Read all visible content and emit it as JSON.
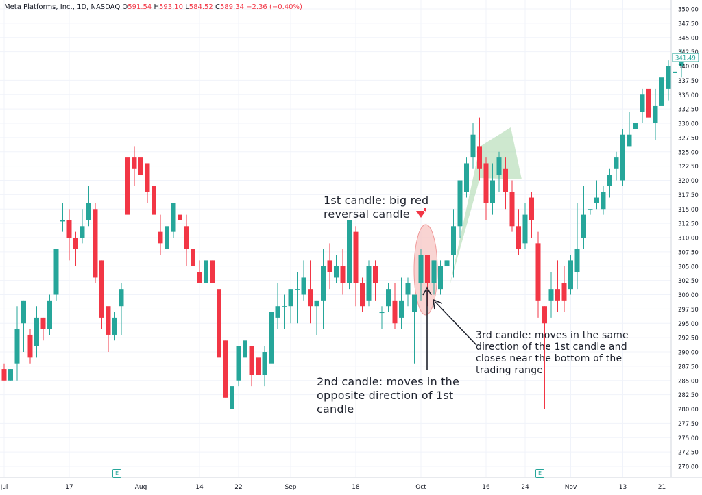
{
  "header": {
    "symbol": "Meta Platforms, Inc., 1D, NASDAQ",
    "o_label": "O",
    "o_value": "591.54",
    "h_label": "H",
    "h_value": "593.10",
    "l_label": "L",
    "l_value": "584.52",
    "c_label": "C",
    "c_value": "589.34",
    "change": "−2.36 (−0.40%)"
  },
  "annotations": {
    "first": [
      "1st candle: big red",
      "reversal candle"
    ],
    "second": [
      "2nd candle: moves in the",
      "opposite direction of 1st",
      "candle"
    ],
    "third": [
      "3rd candle: moves in the same",
      "direction of the 1st candle and",
      "closes near the bottom of the",
      "trading range"
    ]
  },
  "earnings_marker": "E",
  "colors": {
    "up": "#26a69a",
    "down": "#f23645",
    "grid": "#f0f3fa",
    "highlight_fill": "#f7c5c3",
    "arrow_fill": "#a5d6a7"
  },
  "chart_data": {
    "type": "candlestick",
    "y_axis": {
      "position": "right",
      "min": 270,
      "max": 350,
      "ticks": [
        350,
        347.5,
        345,
        342.5,
        340,
        337.5,
        335,
        332.5,
        330,
        327.5,
        325,
        322.5,
        320,
        317.5,
        315,
        312.5,
        310,
        307.5,
        305,
        302.5,
        300,
        297.5,
        295,
        292.5,
        290,
        287.5,
        285,
        282.5,
        280,
        277.5,
        275,
        272.5,
        270
      ]
    },
    "x_axis": {
      "tick_labels": [
        {
          "label": "Jul",
          "index": 0
        },
        {
          "label": "17",
          "index": 10
        },
        {
          "label": "Aug",
          "index": 21
        },
        {
          "label": "14",
          "index": 30
        },
        {
          "label": "22",
          "index": 36
        },
        {
          "label": "Sep",
          "index": 44
        },
        {
          "label": "18",
          "index": 54
        },
        {
          "label": "Oct",
          "index": 64
        },
        {
          "label": "16",
          "index": 74
        },
        {
          "label": "24",
          "index": 80
        },
        {
          "label": "Nov",
          "index": 87
        },
        {
          "label": "13",
          "index": 95
        },
        {
          "label": "21",
          "index": 101
        }
      ]
    },
    "last_price": "341.49",
    "earnings_indices": [
      17,
      82
    ],
    "candles": [
      [
        287,
        285,
        288,
        285
      ],
      [
        285,
        287,
        287,
        285
      ],
      [
        288,
        294,
        298,
        285
      ],
      [
        295,
        299,
        299,
        290
      ],
      [
        293,
        289,
        294,
        288
      ],
      [
        291,
        296,
        298,
        289
      ],
      [
        296,
        294,
        296,
        292
      ],
      [
        294,
        299,
        300,
        293
      ],
      [
        300,
        308,
        308,
        299
      ],
      [
        313,
        313,
        316,
        311
      ],
      [
        313,
        310,
        315,
        306
      ],
      [
        310,
        308,
        311,
        305
      ],
      [
        310,
        312,
        315,
        309
      ],
      [
        313,
        316,
        319,
        312
      ],
      [
        315,
        303,
        316,
        302
      ],
      [
        306,
        296,
        306,
        294
      ],
      [
        298,
        293,
        296,
        290
      ],
      [
        293,
        296,
        297,
        292
      ],
      [
        298,
        301,
        302,
        293
      ],
      [
        324,
        314,
        325,
        312
      ],
      [
        324,
        322,
        326,
        319
      ],
      [
        324,
        321,
        324,
        318
      ],
      [
        323,
        318,
        323,
        316
      ],
      [
        319,
        314,
        319,
        312
      ],
      [
        311,
        309,
        314,
        307
      ],
      [
        308,
        312,
        315,
        307
      ],
      [
        311,
        316,
        316,
        310
      ],
      [
        314,
        313,
        318,
        310
      ],
      [
        312,
        308,
        314,
        305
      ],
      [
        308,
        305,
        309,
        304
      ],
      [
        304,
        302,
        306,
        302
      ],
      [
        302,
        306,
        307,
        299
      ],
      [
        306,
        302,
        306,
        302
      ],
      [
        301,
        289,
        301,
        288
      ],
      [
        292,
        282,
        292,
        282
      ],
      [
        280,
        284,
        288,
        275
      ],
      [
        285,
        291,
        291,
        284
      ],
      [
        289,
        292,
        295,
        288
      ],
      [
        291,
        286,
        291,
        284
      ],
      [
        289,
        286,
        289,
        279
      ],
      [
        286,
        290,
        291,
        284
      ],
      [
        288,
        297,
        298,
        288
      ],
      [
        296,
        298,
        302,
        294
      ],
      [
        298,
        298,
        300,
        294
      ],
      [
        298,
        301,
        301,
        295
      ],
      [
        301,
        301,
        304,
        295
      ],
      [
        300,
        303,
        306,
        299
      ],
      [
        301,
        298,
        306,
        295
      ],
      [
        298,
        299,
        299,
        293
      ],
      [
        299,
        305,
        308,
        294
      ],
      [
        306,
        304,
        309,
        301
      ],
      [
        303,
        305,
        307,
        302
      ],
      [
        305,
        302,
        308,
        300
      ],
      [
        302,
        313,
        313,
        301
      ],
      [
        311,
        302,
        312,
        298
      ],
      [
        302,
        298,
        303,
        297
      ],
      [
        299,
        305,
        306,
        298
      ],
      [
        305,
        302,
        306,
        299
      ],
      [
        297,
        297,
        298,
        294
      ],
      [
        298,
        301,
        302,
        297
      ],
      [
        299,
        295,
        302,
        294
      ],
      [
        296,
        299,
        303,
        294
      ],
      [
        300,
        302,
        303,
        298
      ],
      [
        297,
        300,
        300,
        288
      ],
      [
        302,
        307,
        308,
        299
      ],
      [
        307,
        302,
        307,
        298
      ],
      [
        302,
        306,
        306,
        300
      ],
      [
        301,
        305,
        306,
        300
      ],
      [
        305,
        306,
        306,
        305
      ],
      [
        307,
        312,
        315,
        303
      ],
      [
        312,
        320,
        320,
        310
      ],
      [
        318,
        323,
        324,
        317
      ],
      [
        324,
        328,
        330,
        322
      ],
      [
        326,
        322,
        331,
        320
      ],
      [
        323,
        316,
        324,
        313
      ],
      [
        316,
        320,
        323,
        314
      ],
      [
        321,
        324,
        325,
        318
      ],
      [
        322,
        318,
        324,
        315
      ],
      [
        318,
        312,
        320,
        311
      ],
      [
        312,
        308,
        315,
        307
      ],
      [
        309,
        314,
        316,
        308
      ],
      [
        317,
        313,
        318,
        310
      ],
      [
        309,
        299,
        311,
        296
      ],
      [
        298,
        295,
        298,
        280
      ],
      [
        299,
        301,
        304,
        296
      ],
      [
        301,
        299,
        306,
        297
      ],
      [
        302,
        299,
        305,
        297
      ],
      [
        301,
        306,
        307,
        300
      ],
      [
        304,
        308,
        316,
        301
      ],
      [
        310,
        314,
        319,
        308
      ],
      [
        315,
        315,
        315,
        314
      ],
      [
        316,
        317,
        320,
        315
      ],
      [
        315,
        318,
        319,
        314
      ],
      [
        319,
        321,
        322,
        317
      ],
      [
        322,
        324,
        325,
        320
      ],
      [
        320,
        328,
        329,
        319
      ],
      [
        326,
        328,
        332,
        326
      ],
      [
        329,
        330,
        333,
        326
      ],
      [
        332,
        335,
        336,
        330
      ],
      [
        336,
        331,
        338,
        331
      ],
      [
        330,
        333,
        336,
        327
      ],
      [
        333,
        338,
        339,
        330
      ],
      [
        336,
        340,
        341,
        334
      ],
      [
        339,
        339,
        340,
        337
      ],
      [
        340,
        342,
        343,
        338
      ]
    ]
  }
}
